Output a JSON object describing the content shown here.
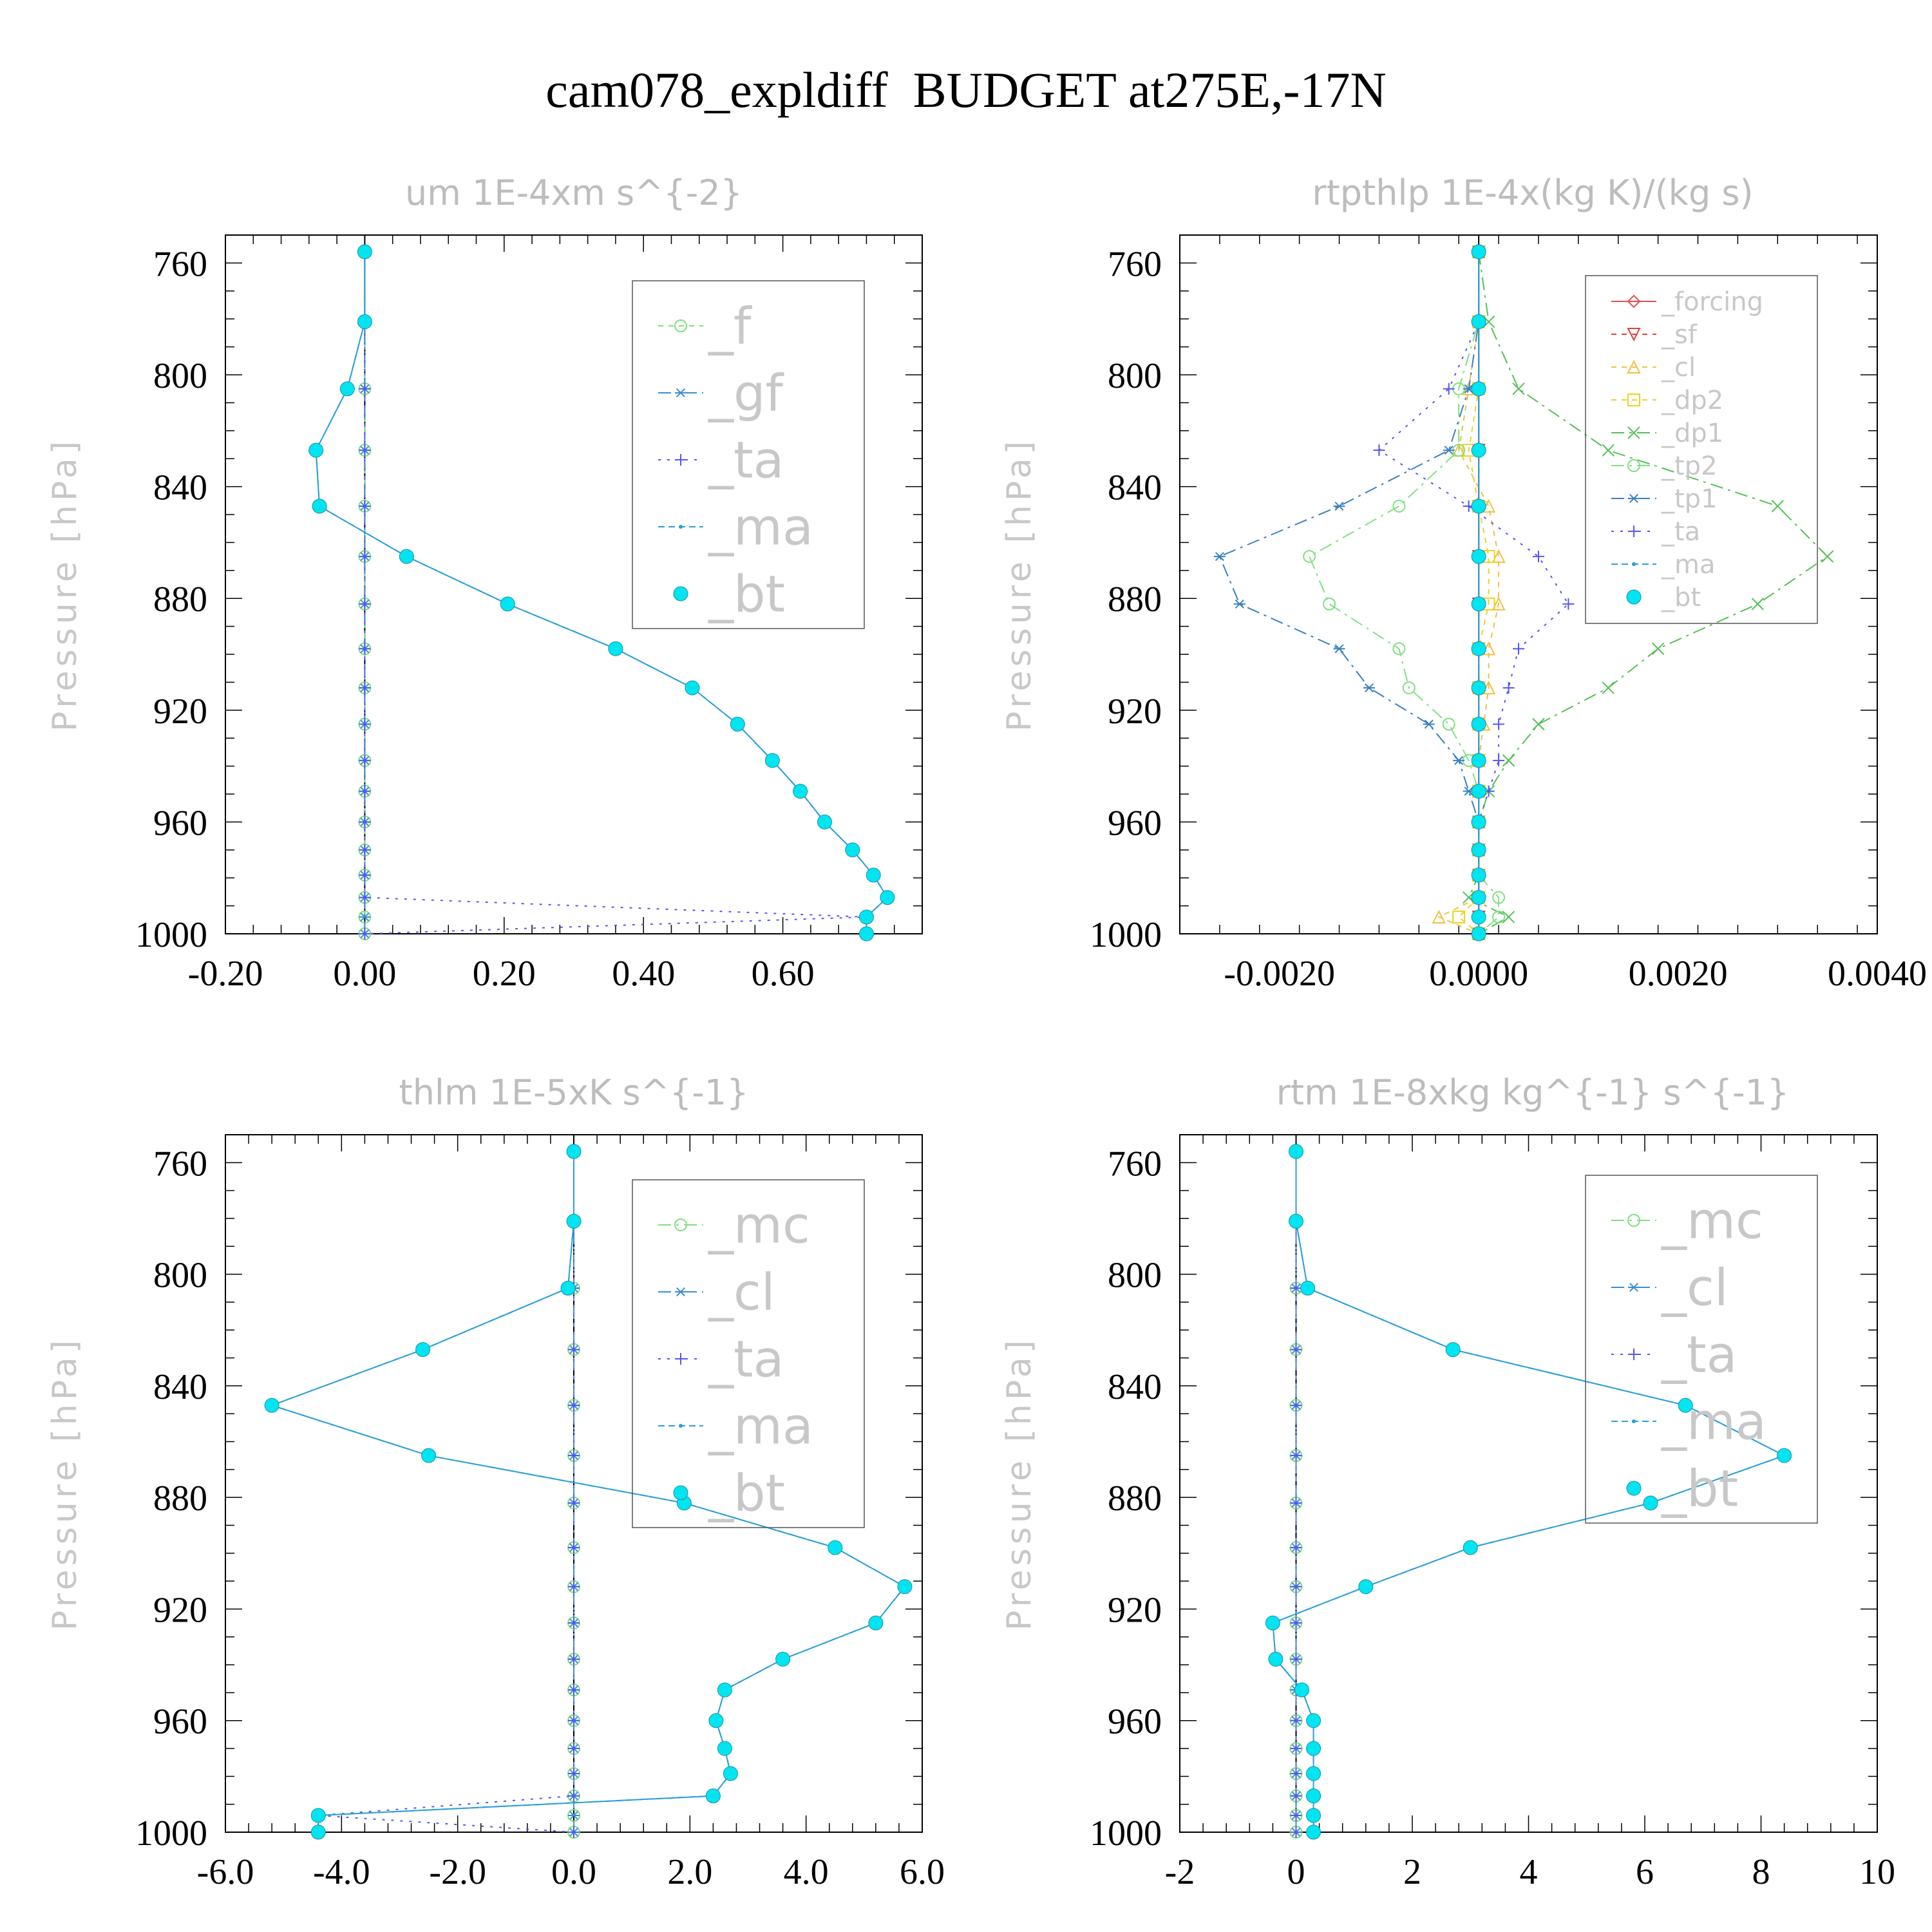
{
  "title": "cam078_expldiff  BUDGET at275E,-17N",
  "colors": {
    "f": "#7ee07e",
    "gf": "#3a8fd0",
    "ta": "#5555ee",
    "ma": "#2a9fd6",
    "bt": "#00e5f0",
    "forcing": "#e05050",
    "sf": "#e04040",
    "cl": "#f0c040",
    "dp2": "#f0d020",
    "dp1": "#55c055",
    "tp2": "#80e080",
    "tp1": "#3a80c0",
    "mc": "#7ee07e",
    "cl_b": "#3a8fd0"
  },
  "chart_data": [
    {
      "type": "line",
      "title": "um  1E-4xm s^{-2}",
      "ylabel": "Pressure [hPa]",
      "ylim": [
        750,
        1000
      ],
      "y_reversed": true,
      "yticks": [
        "760",
        "800",
        "840",
        "880",
        "920",
        "960",
        "1000"
      ],
      "xlim": [
        -0.2,
        0.8
      ],
      "xticks": [
        "-0.20",
        "0.00",
        "0.20",
        "0.40",
        "0.60"
      ],
      "levels": [
        756,
        781,
        805,
        827,
        847,
        865,
        882,
        898,
        912,
        925,
        938,
        949,
        960,
        970,
        979,
        987,
        994,
        1000
      ],
      "legend": [
        "_f",
        "_gf",
        "_ta",
        "_ma",
        "_bt"
      ],
      "series": [
        {
          "name": "_f",
          "values": [
            0,
            0,
            0,
            0,
            0,
            0,
            0,
            0,
            0,
            0,
            0,
            0,
            0,
            0,
            0,
            0,
            0,
            0
          ]
        },
        {
          "name": "_gf",
          "values": [
            0,
            0,
            0,
            0,
            0,
            0,
            0,
            0,
            0,
            0,
            0,
            0,
            0,
            0,
            0,
            0,
            0,
            0
          ]
        },
        {
          "name": "_ta",
          "values": [
            0,
            0,
            0,
            0,
            0,
            0,
            0,
            0,
            0,
            0,
            0,
            0,
            0,
            0,
            0,
            0,
            0.72,
            0
          ]
        },
        {
          "name": "_ma",
          "values": [
            0,
            0,
            -0.025,
            -0.07,
            -0.065,
            0.06,
            0.205,
            0.36,
            0.47,
            0.535,
            0.585,
            0.625,
            0.66,
            0.7,
            0.73,
            0.75,
            0.72,
            0.72
          ]
        },
        {
          "name": "_bt",
          "values": [
            0,
            0,
            -0.025,
            -0.07,
            -0.065,
            0.06,
            0.205,
            0.36,
            0.47,
            0.535,
            0.585,
            0.625,
            0.66,
            0.7,
            0.73,
            0.75,
            0.72,
            0.72
          ]
        }
      ]
    },
    {
      "type": "line",
      "title": "rtpthlp  1E-4x(kg K)/(kg s)",
      "ylabel": "Pressure [hPa]",
      "ylim": [
        750,
        1000
      ],
      "y_reversed": true,
      "yticks": [
        "760",
        "800",
        "840",
        "880",
        "920",
        "960",
        "1000"
      ],
      "xlim": [
        -0.003,
        0.004
      ],
      "xticks": [
        "-0.0020",
        "0.0000",
        "0.0020",
        "0.0040"
      ],
      "levels": [
        756,
        781,
        805,
        827,
        847,
        865,
        882,
        898,
        912,
        925,
        938,
        949,
        960,
        970,
        979,
        987,
        994,
        1000
      ],
      "legend": [
        "_forcing",
        "_sf",
        "_cl",
        "_dp2",
        "_dp1",
        "_tp2",
        "_tp1",
        "_ta",
        "_ma",
        "_bt"
      ],
      "series": [
        {
          "name": "_forcing",
          "values": [
            0,
            0,
            0,
            0,
            0,
            0,
            0,
            0,
            0,
            0,
            0,
            0,
            0,
            0,
            0,
            0,
            0,
            0
          ]
        },
        {
          "name": "_sf",
          "values": [
            0,
            0,
            0,
            0,
            0,
            0,
            0,
            0,
            0,
            0,
            0,
            0,
            0,
            0,
            0,
            0,
            0,
            0
          ]
        },
        {
          "name": "_cl",
          "values": [
            0,
            0,
            -0.0001,
            -0.0002,
            0.0001,
            0.0002,
            0.0002,
            0.0001,
            0.0001,
            5e-05,
            0,
            0,
            0,
            0,
            0,
            0,
            -0.0004,
            0
          ]
        },
        {
          "name": "_dp2",
          "values": [
            0,
            0,
            0,
            -0.0001,
            0,
            0.0001,
            0.0001,
            0,
            0,
            0,
            0,
            0,
            0,
            0,
            0,
            0,
            -0.0002,
            0
          ]
        },
        {
          "name": "_dp1",
          "values": [
            0,
            0.0001,
            0.0004,
            0.0013,
            0.003,
            0.0035,
            0.0028,
            0.0018,
            0.0013,
            0.0006,
            0.0003,
            0.0001,
            0,
            0,
            0,
            -0.0001,
            0.0003,
            0
          ]
        },
        {
          "name": "_tp2",
          "values": [
            0,
            0,
            -0.0002,
            -0.0002,
            -0.0008,
            -0.0017,
            -0.0015,
            -0.0008,
            -0.0007,
            -0.0003,
            -0.0001,
            0,
            0,
            0,
            0,
            0.0002,
            0.0002,
            0
          ]
        },
        {
          "name": "_tp1",
          "values": [
            0,
            0,
            -0.0001,
            -0.0003,
            -0.0014,
            -0.0026,
            -0.0024,
            -0.0014,
            -0.0011,
            -0.0005,
            -0.0002,
            -0.0001,
            0,
            0,
            0,
            0,
            0,
            0
          ]
        },
        {
          "name": "_ta",
          "values": [
            0,
            0,
            -0.0003,
            -0.001,
            -0.0001,
            0.0006,
            0.0009,
            0.0004,
            0.0003,
            0.0002,
            0.0002,
            0.0001,
            0,
            0,
            0,
            0,
            0,
            0
          ]
        },
        {
          "name": "_ma",
          "values": [
            0,
            0,
            0,
            0,
            0,
            0,
            0,
            0,
            0,
            0,
            0,
            0,
            0,
            0,
            0,
            0,
            0,
            0
          ]
        },
        {
          "name": "_bt",
          "values": [
            0,
            0,
            0,
            0,
            0,
            0,
            0,
            0,
            0,
            0,
            0,
            0,
            0,
            0,
            0,
            0,
            0,
            0
          ]
        }
      ]
    },
    {
      "type": "line",
      "title": "thlm  1E-5xK s^{-1}",
      "ylabel": "Pressure [hPa]",
      "ylim": [
        750,
        1000
      ],
      "y_reversed": true,
      "yticks": [
        "760",
        "800",
        "840",
        "880",
        "920",
        "960",
        "1000"
      ],
      "xlim": [
        -6,
        6
      ],
      "xticks": [
        "-6.0",
        "-4.0",
        "-2.0",
        "0.0",
        "2.0",
        "4.0",
        "6.0"
      ],
      "levels": [
        756,
        781,
        805,
        827,
        847,
        865,
        882,
        898,
        912,
        925,
        938,
        949,
        960,
        970,
        979,
        987,
        994,
        1000
      ],
      "legend": [
        "_mc",
        "_cl",
        "_ta",
        "_ma",
        "_bt"
      ],
      "series": [
        {
          "name": "_mc",
          "values": [
            0,
            0,
            0,
            0,
            0,
            0,
            0,
            0,
            0,
            0,
            0,
            0,
            0,
            0,
            0,
            0,
            0,
            0
          ]
        },
        {
          "name": "_cl",
          "values": [
            0,
            0,
            0,
            0,
            0,
            0,
            0,
            0,
            0,
            0,
            0,
            0,
            0,
            0,
            0,
            0,
            0,
            0
          ]
        },
        {
          "name": "_ta",
          "values": [
            0,
            0,
            0,
            0,
            0,
            0,
            0,
            0,
            0,
            0,
            0,
            0,
            0,
            0,
            0,
            0,
            -4.4,
            0
          ]
        },
        {
          "name": "_ma",
          "values": [
            0,
            0,
            -0.1,
            -2.6,
            -5.2,
            -2.5,
            1.9,
            4.5,
            5.7,
            5.2,
            3.6,
            2.6,
            2.45,
            2.6,
            2.7,
            2.4,
            -4.4,
            -4.4
          ]
        },
        {
          "name": "_bt",
          "values": [
            0,
            0,
            -0.1,
            -2.6,
            -5.2,
            -2.5,
            1.9,
            4.5,
            5.7,
            5.2,
            3.6,
            2.6,
            2.45,
            2.6,
            2.7,
            2.4,
            -4.4,
            -4.4
          ]
        }
      ]
    },
    {
      "type": "line",
      "title": "rtm  1E-8xkg kg^{-1} s^{-1}",
      "ylabel": "Pressure [hPa]",
      "ylim": [
        750,
        1000
      ],
      "y_reversed": true,
      "yticks": [
        "760",
        "800",
        "840",
        "880",
        "920",
        "960",
        "1000"
      ],
      "xlim": [
        -2,
        10
      ],
      "xticks": [
        "-2",
        "0",
        "2",
        "4",
        "6",
        "8",
        "10"
      ],
      "levels": [
        756,
        781,
        805,
        827,
        847,
        865,
        882,
        898,
        912,
        925,
        938,
        949,
        960,
        970,
        979,
        987,
        994,
        1000
      ],
      "legend": [
        "_mc",
        "_cl",
        "_ta",
        "_ma",
        "_bt"
      ],
      "series": [
        {
          "name": "_mc",
          "values": [
            0,
            0,
            0,
            0,
            0,
            0,
            0,
            0,
            0,
            0,
            0,
            0,
            0,
            0,
            0,
            0,
            0,
            0
          ]
        },
        {
          "name": "_cl",
          "values": [
            0,
            0,
            0,
            0,
            0,
            0,
            0,
            0,
            0,
            0,
            0,
            0,
            0,
            0,
            0,
            0,
            0,
            0
          ]
        },
        {
          "name": "_ta",
          "values": [
            0,
            0,
            0,
            0,
            0,
            0,
            0,
            0,
            0,
            0,
            0,
            0,
            0,
            0,
            0,
            0,
            0,
            0
          ]
        },
        {
          "name": "_ma",
          "values": [
            0,
            0,
            0.2,
            2.7,
            6.7,
            8.4,
            6.1,
            3,
            1.2,
            -0.4,
            -0.35,
            0.1,
            0.3,
            0.3,
            0.3,
            0.3,
            0.3,
            0.3
          ]
        },
        {
          "name": "_bt",
          "values": [
            0,
            0,
            0.2,
            2.7,
            6.7,
            8.4,
            6.1,
            3,
            1.2,
            -0.4,
            -0.35,
            0.1,
            0.3,
            0.3,
            0.3,
            0.3,
            0.3,
            0.3
          ]
        }
      ]
    }
  ]
}
